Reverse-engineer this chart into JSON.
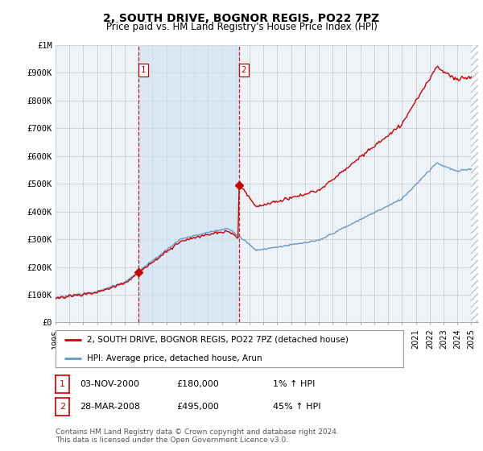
{
  "title": "2, SOUTH DRIVE, BOGNOR REGIS, PO22 7PZ",
  "subtitle": "Price paid vs. HM Land Registry's House Price Index (HPI)",
  "ylabel_ticks": [
    "£0",
    "£100K",
    "£200K",
    "£300K",
    "£400K",
    "£500K",
    "£600K",
    "£700K",
    "£800K",
    "£900K",
    "£1M"
  ],
  "ytick_values": [
    0,
    100000,
    200000,
    300000,
    400000,
    500000,
    600000,
    700000,
    800000,
    900000,
    1000000
  ],
  "ylim": [
    0,
    1000000
  ],
  "x_start_year": 1995,
  "x_end_year": 2025,
  "vline1_year": 2001.0,
  "vline2_year": 2008.25,
  "purchase1_year": 2001.0,
  "purchase1_price": 180000,
  "purchase2_year": 2008.25,
  "purchase2_price": 495000,
  "legend_label_red": "2, SOUTH DRIVE, BOGNOR REGIS, PO22 7PZ (detached house)",
  "legend_label_blue": "HPI: Average price, detached house, Arun",
  "transaction1_date": "03-NOV-2000",
  "transaction1_price": "£180,000",
  "transaction1_hpi": "1% ↑ HPI",
  "transaction2_date": "28-MAR-2008",
  "transaction2_price": "£495,000",
  "transaction2_hpi": "45% ↑ HPI",
  "footer": "Contains HM Land Registry data © Crown copyright and database right 2024.\nThis data is licensed under the Open Government Licence v3.0.",
  "red_line_color": "#cc0000",
  "blue_line_color": "#6699cc",
  "vline_color": "#cc0000",
  "grid_color": "#cccccc",
  "bg_color": "#ffffff",
  "plot_bg_color": "#eef3f8",
  "shade_color": "#d0e4f5"
}
